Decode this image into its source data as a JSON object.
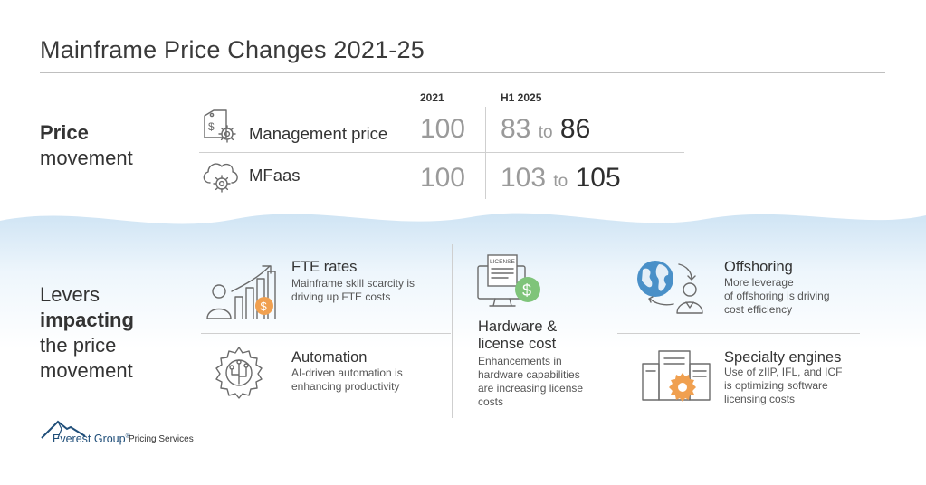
{
  "title": "Mainframe Price Changes 2021-25",
  "price_section": {
    "label_bold": "Price",
    "label_rest": "movement",
    "col_2021": "2021",
    "col_h1": "H1 2025",
    "rows": [
      {
        "label": "Management price",
        "icon": "price-tag-gear-icon",
        "v2021": "100",
        "low": "83",
        "to": "to",
        "high": "86"
      },
      {
        "label": "MFaas",
        "icon": "cloud-gear-icon",
        "v2021": "100",
        "low": "103",
        "to": "to",
        "high": "105"
      }
    ]
  },
  "levers_section": {
    "label_line1": "Levers",
    "label_line2": "impacting",
    "label_line3": "the price",
    "label_line4": "movement",
    "cards": [
      {
        "title": "FTE rates",
        "desc": [
          "Mainframe skill scarcity is",
          "driving up FTE costs"
        ],
        "icon": "fte-rates-icon"
      },
      {
        "title": "Automation",
        "desc": [
          "AI-driven automation is",
          "enhancing productivity"
        ],
        "icon": "automation-gear-icon"
      },
      {
        "title_lines": [
          "Hardware &",
          "license cost"
        ],
        "desc": [
          "Enhancements in",
          "hardware capabilities",
          "are increasing license",
          "costs"
        ],
        "icon": "license-computer-icon",
        "icon_text": "LICENSE"
      },
      {
        "title": "Offshoring",
        "desc": [
          "More leverage",
          "of offshoring is driving",
          "cost efficiency"
        ],
        "icon": "globe-person-icon"
      },
      {
        "title": "Specialty engines",
        "desc": [
          "Use of zIIP, IFL, and ICF",
          "is optimizing software",
          "licensing costs"
        ],
        "icon": "server-gear-icon"
      }
    ]
  },
  "footer": {
    "brand": "Everest Group",
    "registered": "®",
    "sub": "Pricing Services"
  },
  "colors": {
    "accent_orange": "#f0a050",
    "accent_green": "#7fc47a",
    "accent_blue": "#4a90c8",
    "wave_blue": "#dcecf7",
    "brand_navy": "#1f4e79"
  }
}
